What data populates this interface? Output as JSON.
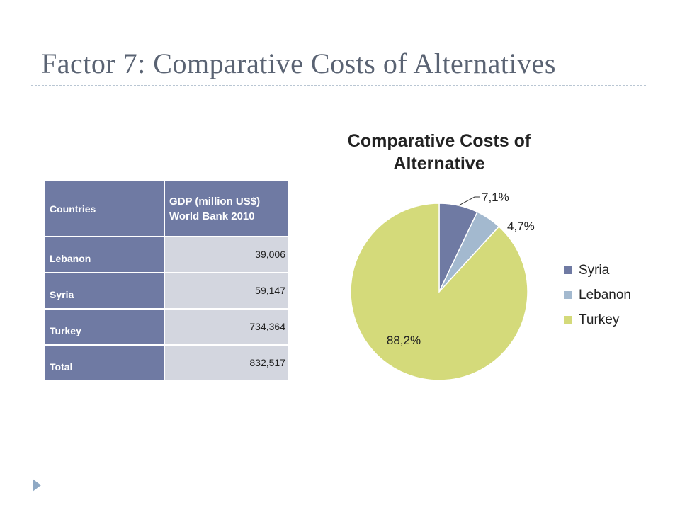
{
  "slide": {
    "title": "Factor 7: Comparative Costs of Alternatives"
  },
  "table": {
    "headers": [
      "Countries",
      "GDP (million US$) World Bank 2010"
    ],
    "rows": [
      {
        "country": "Lebanon",
        "gdp": "39,006"
      },
      {
        "country": "Syria",
        "gdp": "59,147"
      },
      {
        "country": "Turkey",
        "gdp": "734,364"
      },
      {
        "country": "Total",
        "gdp": "832,517"
      }
    ]
  },
  "chart_data": {
    "type": "pie",
    "title": "Comparative Costs of Alternative",
    "slices": [
      {
        "name": "Syria",
        "value": 7.1,
        "label": "7,1%",
        "color": "#6f7aa3"
      },
      {
        "name": "Lebanon",
        "value": 4.7,
        "label": "4,7%",
        "color": "#a3b9cf"
      },
      {
        "name": "Turkey",
        "value": 88.2,
        "label": "88,2%",
        "color": "#d4da7a"
      }
    ],
    "legend": {
      "position": "right",
      "entries": [
        "Syria",
        "Lebanon",
        "Turkey"
      ]
    }
  }
}
